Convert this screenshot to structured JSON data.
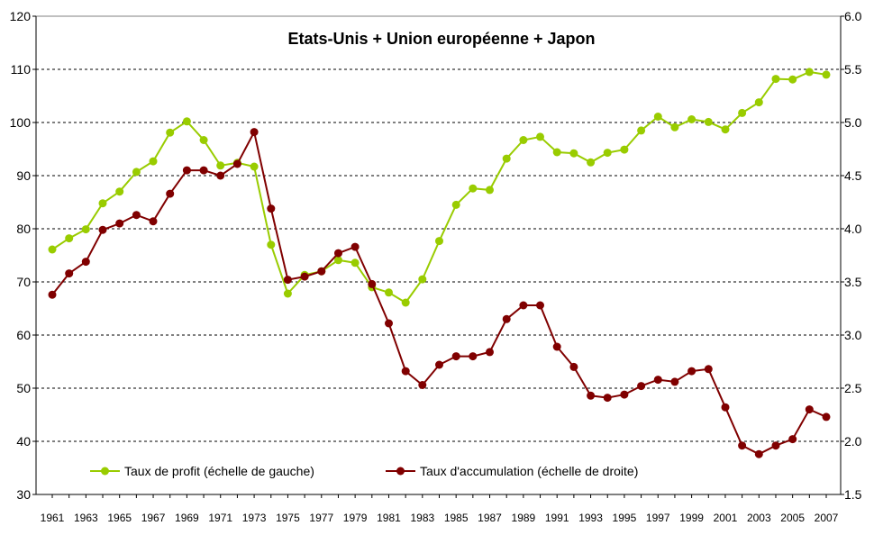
{
  "chart_data": {
    "type": "line",
    "title": "Etats-Unis + Union européenne + Japon",
    "x": [
      1961,
      1962,
      1963,
      1964,
      1965,
      1966,
      1967,
      1968,
      1969,
      1970,
      1971,
      1972,
      1973,
      1974,
      1975,
      1976,
      1977,
      1978,
      1979,
      1980,
      1981,
      1982,
      1983,
      1984,
      1985,
      1986,
      1987,
      1988,
      1989,
      1990,
      1991,
      1992,
      1993,
      1994,
      1995,
      1996,
      1997,
      1998,
      1999,
      2000,
      2001,
      2002,
      2003,
      2004,
      2005,
      2006,
      2007
    ],
    "x_tick_labels": [
      "1961",
      "1963",
      "1965",
      "1967",
      "1969",
      "1971",
      "1973",
      "1975",
      "1977",
      "1979",
      "1981",
      "1983",
      "1985",
      "1987",
      "1989",
      "1991",
      "1993",
      "1995",
      "1997",
      "1999",
      "2001",
      "2003",
      "2005",
      "2007"
    ],
    "y_left": {
      "min": 30,
      "max": 120,
      "step": 10,
      "tick_labels": [
        "30",
        "40",
        "50",
        "60",
        "70",
        "80",
        "90",
        "100",
        "110",
        "120"
      ]
    },
    "y_right": {
      "min": 1.5,
      "max": 6.0,
      "step": 0.5,
      "tick_labels": [
        "1.5",
        "2.0",
        "2.5",
        "3.0",
        "3.5",
        "4.0",
        "4.5",
        "5.0",
        "5.5",
        "6.0"
      ]
    },
    "grid": {
      "horizontal": true,
      "style": "dashed"
    },
    "legend_position": "bottom-left",
    "series": [
      {
        "name": "Taux de profit (échelle de gauche)",
        "axis": "left",
        "color": "#99cc00",
        "values": [
          76.1,
          78.2,
          79.9,
          84.8,
          87.0,
          90.7,
          92.7,
          98.1,
          100.2,
          96.7,
          91.9,
          92.4,
          91.7,
          77.0,
          67.8,
          71.3,
          72.0,
          74.1,
          73.6,
          69.0,
          68.0,
          66.1,
          70.5,
          77.7,
          84.5,
          87.6,
          87.3,
          93.2,
          96.7,
          97.3,
          94.4,
          94.2,
          92.5,
          94.3,
          94.9,
          98.5,
          101.1,
          99.1,
          100.6,
          100.1,
          98.7,
          101.8,
          103.8,
          108.2,
          108.1,
          109.5,
          109.0
        ]
      },
      {
        "name": "Taux d'accumulation (échelle de droite)",
        "axis": "right",
        "color": "#800000",
        "values": [
          3.38,
          3.58,
          3.69,
          3.99,
          4.05,
          4.13,
          4.07,
          4.33,
          4.55,
          4.55,
          4.5,
          4.61,
          4.91,
          4.19,
          3.52,
          3.55,
          3.6,
          3.77,
          3.83,
          3.48,
          3.11,
          2.66,
          2.53,
          2.72,
          2.8,
          2.8,
          2.84,
          3.15,
          3.28,
          3.28,
          2.89,
          2.7,
          2.43,
          2.41,
          2.44,
          2.52,
          2.58,
          2.56,
          2.66,
          2.68,
          2.32,
          1.96,
          1.88,
          1.96,
          2.02,
          2.3,
          2.23
        ]
      }
    ]
  }
}
